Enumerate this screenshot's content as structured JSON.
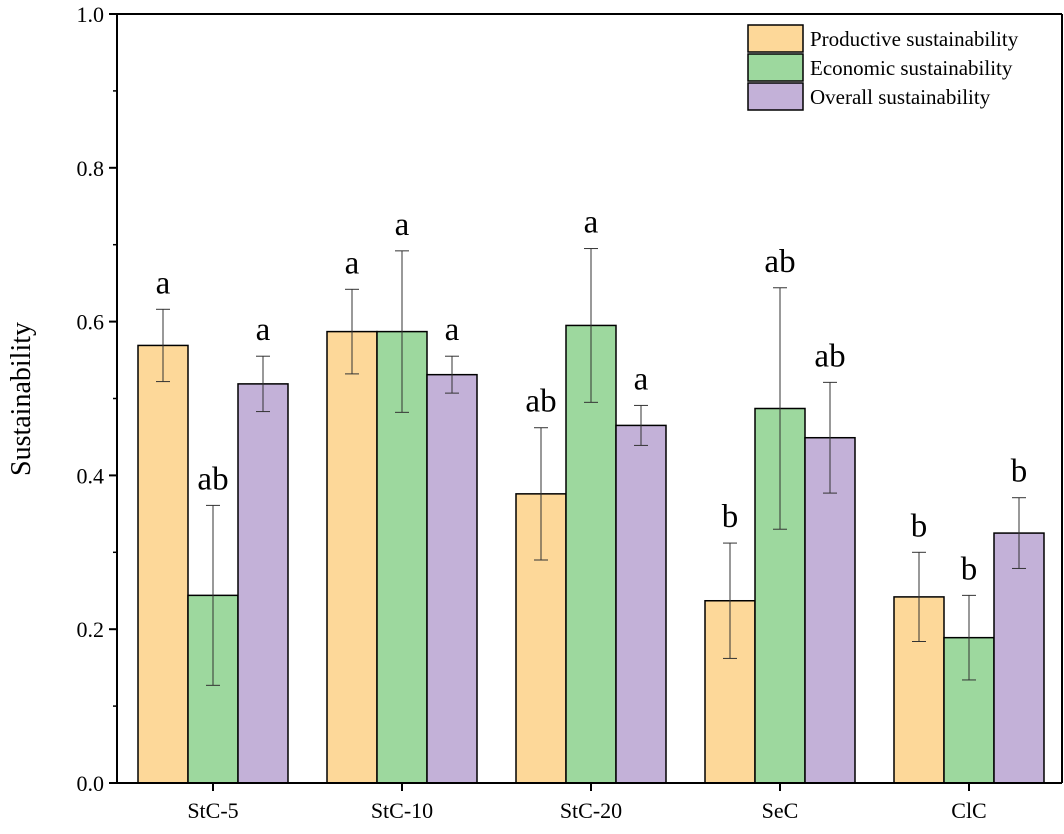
{
  "chart_data": {
    "type": "bar",
    "title": "",
    "xlabel": "",
    "ylabel": "Sustainability",
    "ylim": [
      0,
      1.0
    ],
    "yticks": [
      "0.0",
      "0.2",
      "0.4",
      "0.6",
      "0.8",
      "1.0"
    ],
    "grid": false,
    "legend_position": "top-right",
    "categories": [
      "StC-5",
      "StC-10",
      "StC-20",
      "SeC",
      "ClC"
    ],
    "series": [
      {
        "name": "Productive sustainability",
        "color": "#FDD899",
        "values": [
          0.569,
          0.587,
          0.376,
          0.237,
          0.242
        ],
        "errors": [
          0.047,
          0.055,
          0.086,
          0.075,
          0.058
        ],
        "significance": [
          "a",
          "a",
          "ab",
          "b",
          "b"
        ]
      },
      {
        "name": "Economic sustainability",
        "color": "#9DD89E",
        "values": [
          0.244,
          0.587,
          0.595,
          0.487,
          0.189
        ],
        "errors": [
          0.117,
          0.105,
          0.1,
          0.157,
          0.055
        ],
        "significance": [
          "ab",
          "a",
          "a",
          "ab",
          "b"
        ]
      },
      {
        "name": "Overall sustainability",
        "color": "#C3B1D8",
        "values": [
          0.519,
          0.531,
          0.465,
          0.449,
          0.325
        ],
        "errors": [
          0.036,
          0.024,
          0.026,
          0.072,
          0.046
        ],
        "significance": [
          "a",
          "a",
          "a",
          "ab",
          "b"
        ]
      }
    ]
  }
}
